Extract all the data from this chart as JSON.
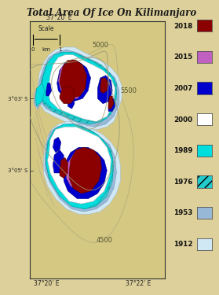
{
  "title": "Total Area Of Ice On Kilimanjaro",
  "bg_color": "#DDD09A",
  "map_bg": "#D4C882",
  "border_color": "#333333",
  "legend": {
    "years": [
      "2018",
      "2015",
      "2007",
      "2000",
      "1989",
      "1976",
      "1953",
      "1912"
    ],
    "colors": [
      "#8B0000",
      "#C060C0",
      "#0000CC",
      "#FFFFFF",
      "#00DDDD",
      "#22CCCC",
      "#98B8D8",
      "#D0E8F4"
    ],
    "hatches": [
      "",
      "",
      "",
      "",
      "",
      "///",
      "",
      ""
    ]
  },
  "contour_color": "#999977",
  "slope_color": "#BBAA88",
  "labels": {
    "top_lon": "37°20' E",
    "bot_lon_left": "37°20' E",
    "bot_lon_right": "37°22' E",
    "lat_top": "3°03' S",
    "lat_bot": "3°05' S",
    "elev_5000": "5000",
    "elev_5500": "5500",
    "elev_4500": "4500",
    "scale_label": "Scale",
    "scale_km": "km",
    "scale_0": "0",
    "scale_1": "1"
  },
  "title_color": "#1a1a1a",
  "title_fontsize": 8.5,
  "label_fontsize": 5.5,
  "legend_fontsize": 5.8
}
